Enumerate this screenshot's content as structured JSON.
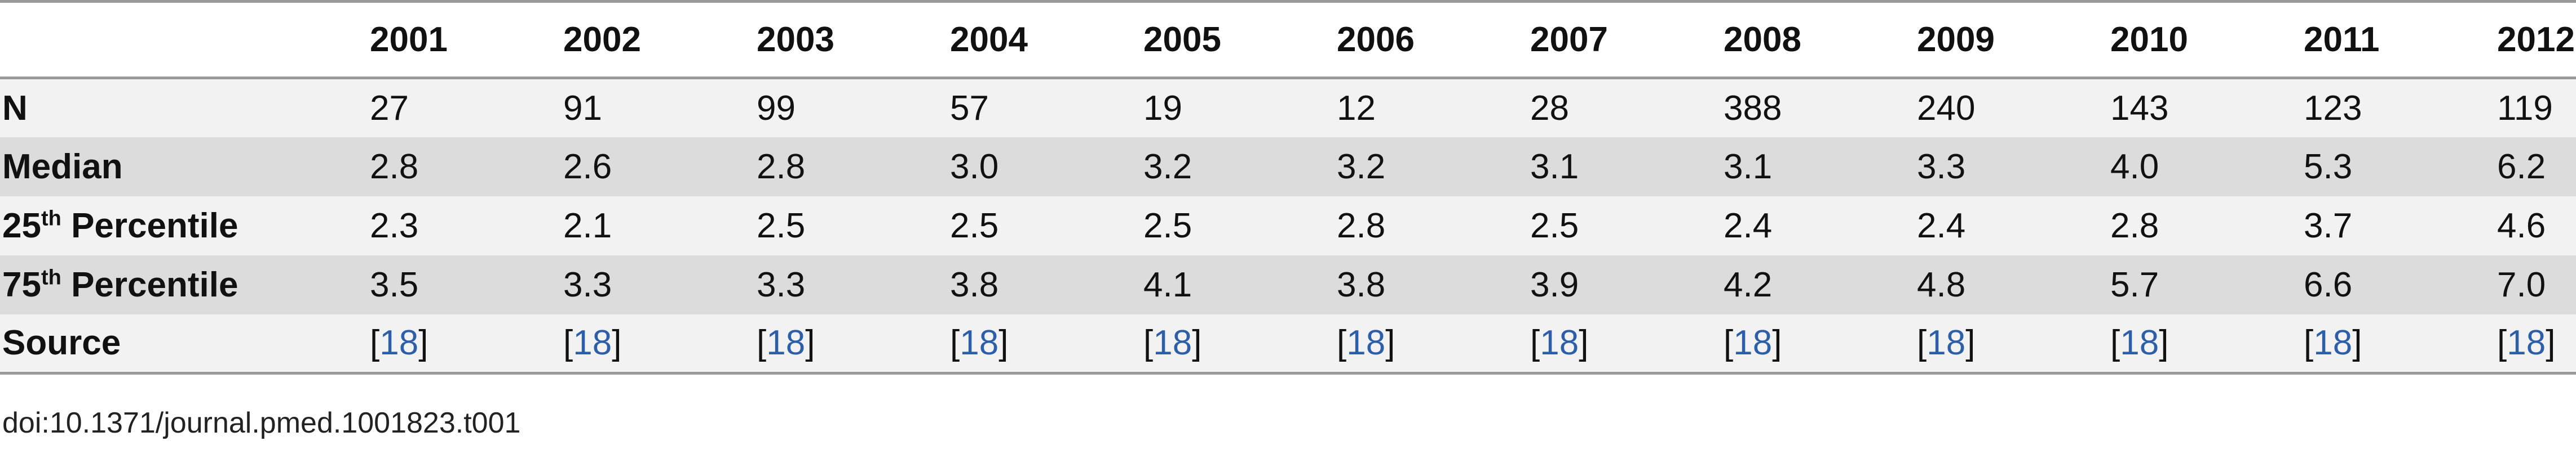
{
  "table": {
    "header_label": "",
    "years": [
      "2001",
      "2002",
      "2003",
      "2004",
      "2005",
      "2006",
      "2007",
      "2008",
      "2009",
      "2010",
      "2011",
      "2012"
    ],
    "rows": [
      {
        "label": "N",
        "label_sup": "",
        "label_rest": "",
        "values": [
          "27",
          "91",
          "99",
          "57",
          "19",
          "12",
          "28",
          "388",
          "240",
          "143",
          "123",
          "119"
        ]
      },
      {
        "label": "Median",
        "label_sup": "",
        "label_rest": "",
        "values": [
          "2.8",
          "2.6",
          "2.8",
          "3.0",
          "3.2",
          "3.2",
          "3.1",
          "3.1",
          "3.3",
          "4.0",
          "5.3",
          "6.2"
        ]
      },
      {
        "label": "25",
        "label_sup": "th",
        "label_rest": " Percentile",
        "values": [
          "2.3",
          "2.1",
          "2.5",
          "2.5",
          "2.5",
          "2.8",
          "2.5",
          "2.4",
          "2.4",
          "2.8",
          "3.7",
          "4.6"
        ]
      },
      {
        "label": "75",
        "label_sup": "th",
        "label_rest": " Percentile",
        "values": [
          "3.5",
          "3.3",
          "3.3",
          "3.8",
          "4.1",
          "3.8",
          "3.9",
          "4.2",
          "4.8",
          "5.7",
          "6.6",
          "7.0"
        ]
      }
    ],
    "source_row": {
      "label": "Source",
      "open_bracket": "[",
      "ref": "18",
      "close_bracket": "]"
    }
  },
  "doi": "doi:10.1371/journal.pmed.1001823.t001",
  "colors": {
    "link": "#2d5fa8",
    "row_light": "#f2f2f2",
    "row_dark": "#dcdcdc",
    "rule": "#9a9a9a"
  }
}
